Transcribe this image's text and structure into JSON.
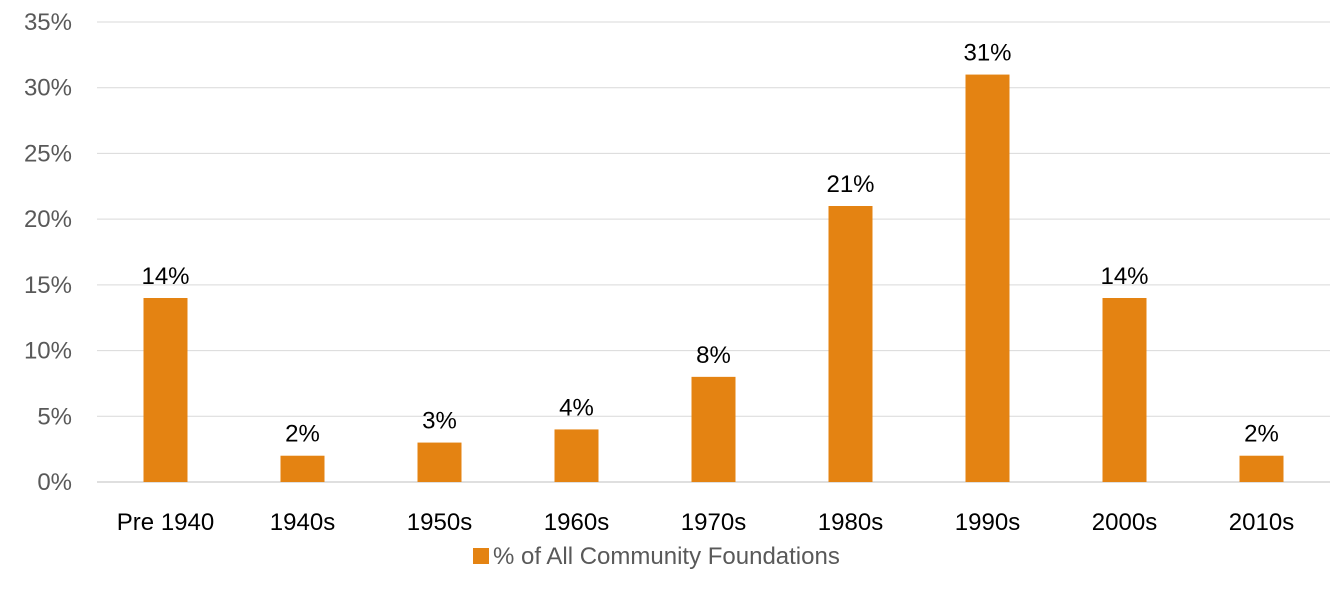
{
  "chart_data": {
    "type": "bar",
    "categories": [
      "Pre 1940",
      "1940s",
      "1950s",
      "1960s",
      "1970s",
      "1980s",
      "1990s",
      "2000s",
      "2010s"
    ],
    "series": [
      {
        "name": "% of All Community Foundations",
        "values": [
          14,
          2,
          3,
          4,
          8,
          21,
          31,
          14,
          2
        ],
        "color": "#E48312"
      }
    ],
    "data_labels": [
      "14%",
      "2%",
      "3%",
      "4%",
      "8%",
      "21%",
      "31%",
      "14%",
      "2%"
    ],
    "y_ticks": [
      0,
      5,
      10,
      15,
      20,
      25,
      30,
      35
    ],
    "y_tick_labels": [
      "0%",
      "5%",
      "10%",
      "15%",
      "20%",
      "25%",
      "30%",
      "35%"
    ],
    "ylim": [
      0,
      35
    ],
    "grid": true,
    "legend_position": "bottom",
    "title": "",
    "xlabel": "",
    "ylabel": ""
  }
}
